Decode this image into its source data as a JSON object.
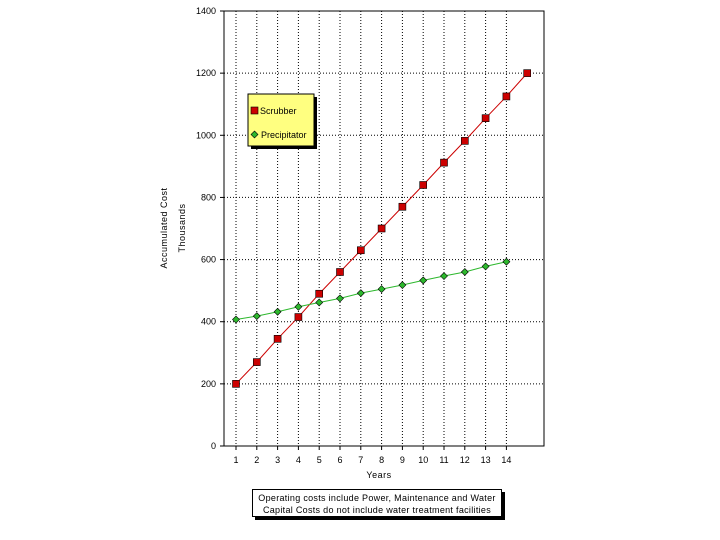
{
  "chart_data": {
    "type": "line",
    "xlabel": "Years",
    "ylabel_line1": "Accumulated Cost",
    "ylabel_line2": "Thousands",
    "ylim": [
      0,
      1400
    ],
    "yticks": [
      0,
      200,
      400,
      600,
      800,
      1000,
      1200,
      1400
    ],
    "xticks": [
      1,
      2,
      3,
      4,
      5,
      6,
      7,
      8,
      9,
      10,
      11,
      12,
      13,
      14
    ],
    "xlim": [
      0.5,
      15.5
    ],
    "grid": true,
    "legend_position": "top-left",
    "series": [
      {
        "name": "Scrubber",
        "color": "#cc0000",
        "marker": "square",
        "x": [
          1,
          2,
          3,
          4,
          5,
          6,
          7,
          8,
          9,
          10,
          11,
          12,
          13,
          14,
          15
        ],
        "y": [
          200,
          270,
          345,
          415,
          490,
          560,
          630,
          700,
          770,
          840,
          912,
          982,
          1055,
          1125,
          1200
        ]
      },
      {
        "name": "Precipitator",
        "color": "#2db82d",
        "marker": "diamond",
        "x": [
          1,
          2,
          3,
          4,
          5,
          6,
          7,
          8,
          9,
          10,
          11,
          12,
          13,
          14
        ],
        "y": [
          407,
          418,
          432,
          448,
          462,
          475,
          492,
          505,
          518,
          533,
          547,
          560,
          578,
          593
        ]
      }
    ]
  },
  "note": {
    "line1": "Operating costs include Power, Maintenance and Water",
    "line2": "Capital Costs do not include water treatment facilities"
  }
}
